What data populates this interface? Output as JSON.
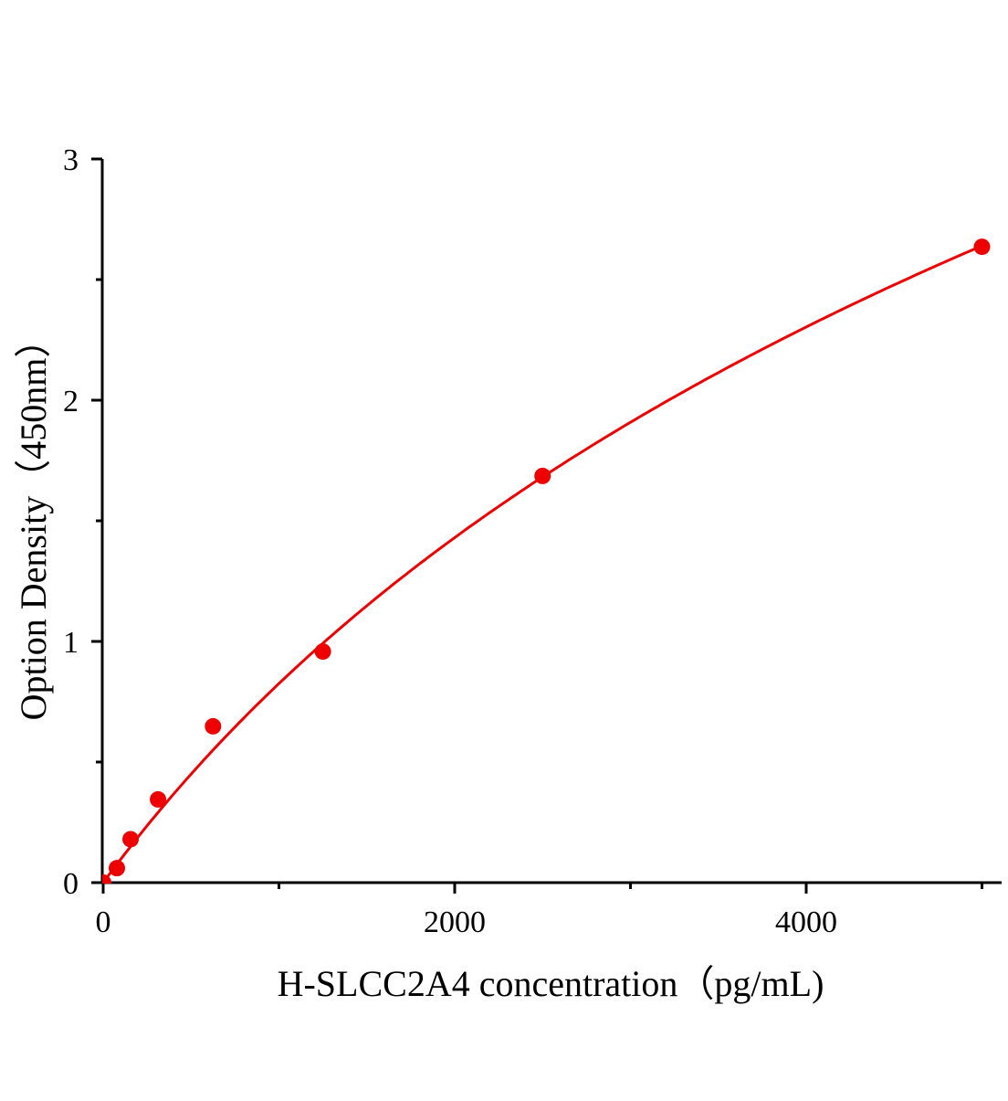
{
  "chart_data": {
    "type": "scatter",
    "title": "",
    "xlabel": "H-SLCC2A4 concentration（pg/mL)",
    "ylabel": "Option Density（450nm）",
    "xlim": [
      0,
      5110
    ],
    "ylim": [
      0,
      3
    ],
    "x_ticks": [
      0,
      2000,
      4000
    ],
    "x_tick_labels": [
      "0",
      "2000",
      "4000"
    ],
    "x_minor_ticks": [
      1000,
      3000,
      5000
    ],
    "y_ticks": [
      0,
      1,
      2,
      3
    ],
    "y_tick_labels": [
      "0",
      "1",
      "2",
      "3"
    ],
    "y_minor_ticks": [
      0.5,
      1.5,
      2.5
    ],
    "grid": false,
    "series": [
      {
        "x": [
          0,
          78,
          156,
          312,
          625,
          1250,
          2500,
          5000
        ],
        "y": [
          0.0,
          0.06,
          0.18,
          0.345,
          0.648,
          0.958,
          1.686,
          2.636
        ],
        "color": "#ee0000",
        "fit_line": true
      }
    ]
  }
}
